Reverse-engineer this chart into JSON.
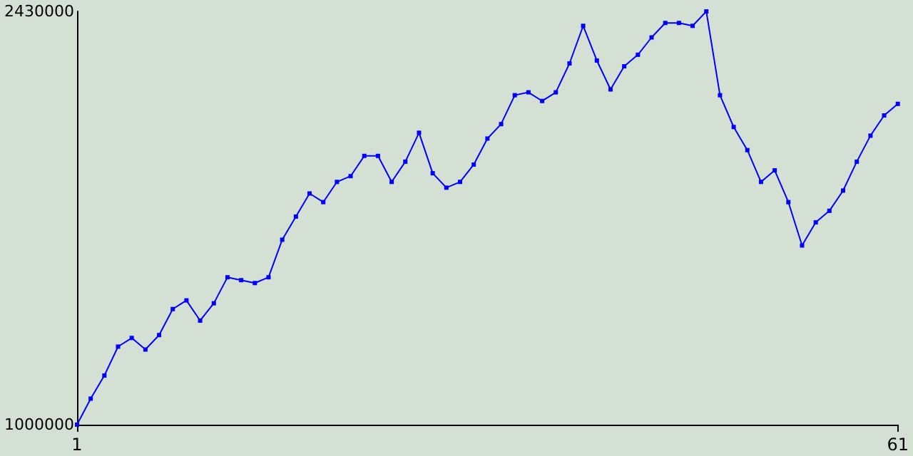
{
  "chart_data": {
    "type": "line",
    "x": [
      1,
      2,
      3,
      4,
      5,
      6,
      7,
      8,
      9,
      10,
      11,
      12,
      13,
      14,
      15,
      16,
      17,
      18,
      19,
      20,
      21,
      22,
      23,
      24,
      25,
      26,
      27,
      28,
      29,
      30,
      31,
      32,
      33,
      34,
      35,
      36,
      37,
      38,
      39,
      40,
      41,
      42,
      43,
      44,
      45,
      46,
      47,
      48,
      49,
      50,
      51,
      52,
      53,
      54,
      55,
      56,
      57,
      58,
      59,
      60,
      61
    ],
    "series": [
      {
        "color": "#0000ff",
        "values": [
          1000000,
          1090000,
          1170000,
          1270000,
          1300000,
          1260000,
          1310000,
          1400000,
          1430000,
          1360000,
          1420000,
          1510000,
          1500000,
          1490000,
          1510000,
          1640000,
          1720000,
          1800000,
          1770000,
          1840000,
          1860000,
          1930000,
          1930000,
          1840000,
          1910000,
          2010000,
          1870000,
          1820000,
          1840000,
          1900000,
          1990000,
          2040000,
          2140000,
          2150000,
          2120000,
          2150000,
          2250000,
          2380000,
          2260000,
          2160000,
          2240000,
          2280000,
          2340000,
          2390000,
          2390000,
          2380000,
          2430000,
          2140000,
          2030000,
          1950000,
          1840000,
          1880000,
          1770000,
          1620000,
          1700000,
          1740000,
          1810000,
          1910000,
          2000000,
          2070000,
          2110000
        ]
      }
    ],
    "xlim": [
      1,
      61
    ],
    "xticks": [
      1,
      61
    ],
    "ylim": [
      1000000,
      2430000
    ],
    "yticks": [
      1000000,
      2430000
    ],
    "grid": false,
    "marker": "square",
    "line_style": "solid"
  }
}
